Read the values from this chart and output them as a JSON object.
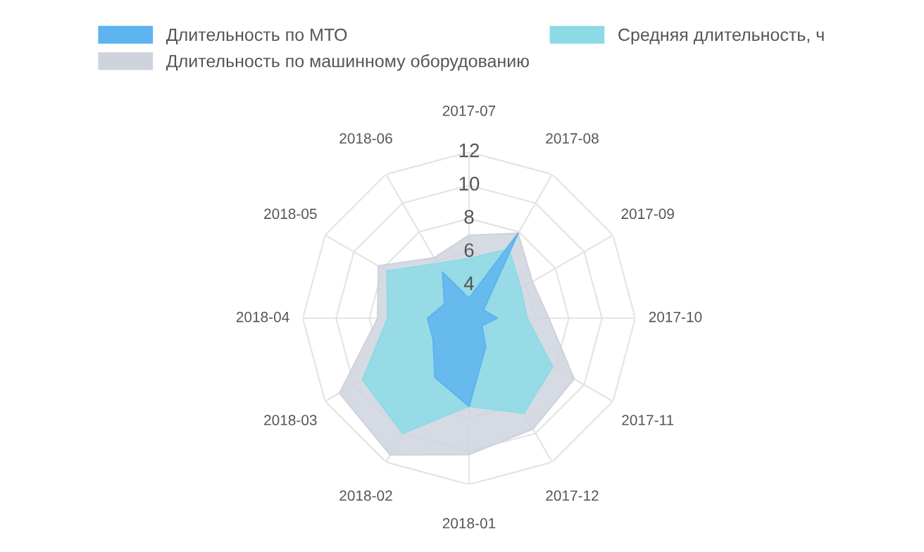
{
  "chart_data": {
    "type": "radar",
    "categories": [
      "2017-07",
      "2017-08",
      "2017-09",
      "2017-10",
      "2017-11",
      "2017-12",
      "2018-01",
      "2018-02",
      "2018-03",
      "2018-04",
      "2018-05",
      "2018-06"
    ],
    "series": [
      {
        "name": "Длительность по МТО",
        "color": "#5eb4ef",
        "values": [
          3.2,
          7.9,
          3.0,
          3.7,
          2.9,
          4.0,
          7.3,
          6.1,
          4.5,
          4.5,
          3.7,
          5.2
        ]
      },
      {
        "name": "Средняя длительность, ч",
        "color": "#8cdbe6",
        "values": [
          5.6,
          6.8,
          5.6,
          5.5,
          7.8,
          8.6,
          7.3,
          10.0,
          9.4,
          6.9,
          7.7,
          5.8
        ]
      },
      {
        "name": "Длительность по машинному оборудованию",
        "color": "#cfd3de",
        "values": [
          7.0,
          7.9,
          6.4,
          6.8,
          9.3,
          9.7,
          10.2,
          11.5,
          11.0,
          7.5,
          8.3,
          6.2
        ]
      }
    ],
    "ylim": [
      2,
      12
    ],
    "yticks": [
      4,
      6,
      8,
      10,
      12
    ],
    "grid": true,
    "legend": "top"
  }
}
